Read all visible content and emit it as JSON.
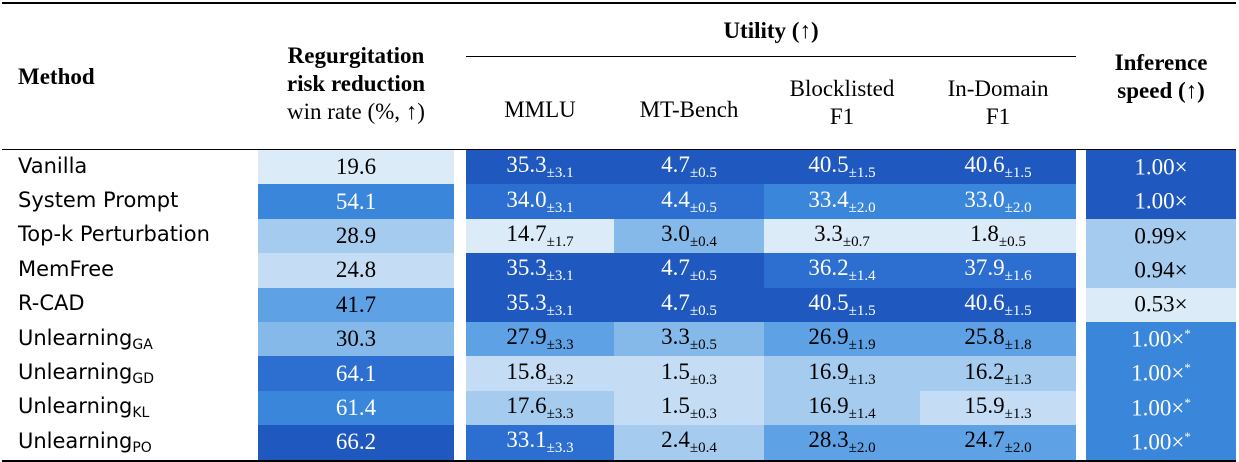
{
  "header": {
    "method": "Method",
    "regurg_line1": "Regurgitation",
    "regurg_line2": "risk reduction",
    "regurg_line3": "win rate (%, ↑)",
    "utility": "Utility (↑)",
    "mmlu": "MMLU",
    "mtbench": "MT-Bench",
    "blocklisted_line1": "Blocklisted",
    "blocklisted_line2": "F1",
    "indomain_line1": "In-Domain",
    "indomain_line2": "F1",
    "inference_line1": "Inference",
    "inference_line2": "speed (↑)"
  },
  "colors": {
    "c1": "#dcebf8",
    "c2": "#c4ddf4",
    "c3": "#a5cbef",
    "c4": "#84b9ea",
    "c5": "#5ea1e4",
    "c6": "#3a86db",
    "c7": "#2c6fd0",
    "c8": "#1f59bf"
  },
  "rows": [
    {
      "method": "Vanilla",
      "sub": "",
      "regurg": "19.6",
      "mmlu": "35.3",
      "mmlu_pm": "±3.1",
      "mt": "4.7",
      "mt_pm": "±0.5",
      "blk": "40.5",
      "blk_pm": "±1.5",
      "ind": "40.6",
      "ind_pm": "±1.5",
      "speed": "1.00×",
      "speed_star": ""
    },
    {
      "method": "System Prompt",
      "sub": "",
      "regurg": "54.1",
      "mmlu": "34.0",
      "mmlu_pm": "±3.1",
      "mt": "4.4",
      "mt_pm": "±0.5",
      "blk": "33.4",
      "blk_pm": "±2.0",
      "ind": "33.0",
      "ind_pm": "±2.0",
      "speed": "1.00×",
      "speed_star": ""
    },
    {
      "method": "Top-k Perturbation",
      "sub": "",
      "regurg": "28.9",
      "mmlu": "14.7",
      "mmlu_pm": "±1.7",
      "mt": "3.0",
      "mt_pm": "±0.4",
      "blk": "3.3",
      "blk_pm": "±0.7",
      "ind": "1.8",
      "ind_pm": "±0.5",
      "speed": "0.99×",
      "speed_star": ""
    },
    {
      "method": "MemFree",
      "sub": "",
      "regurg": "24.8",
      "mmlu": "35.3",
      "mmlu_pm": "±3.1",
      "mt": "4.7",
      "mt_pm": "±0.5",
      "blk": "36.2",
      "blk_pm": "±1.4",
      "ind": "37.9",
      "ind_pm": "±1.6",
      "speed": "0.94×",
      "speed_star": ""
    },
    {
      "method": "R-CAD",
      "sub": "",
      "regurg": "41.7",
      "mmlu": "35.3",
      "mmlu_pm": "±3.1",
      "mt": "4.7",
      "mt_pm": "±0.5",
      "blk": "40.5",
      "blk_pm": "±1.5",
      "ind": "40.6",
      "ind_pm": "±1.5",
      "speed": "0.53×",
      "speed_star": ""
    },
    {
      "method": "Unlearning",
      "sub": "GA",
      "regurg": "30.3",
      "mmlu": "27.9",
      "mmlu_pm": "±3.3",
      "mt": "3.3",
      "mt_pm": "±0.5",
      "blk": "26.9",
      "blk_pm": "±1.9",
      "ind": "25.8",
      "ind_pm": "±1.8",
      "speed": "1.00×",
      "speed_star": "*"
    },
    {
      "method": "Unlearning",
      "sub": "GD",
      "regurg": "64.1",
      "mmlu": "15.8",
      "mmlu_pm": "±3.2",
      "mt": "1.5",
      "mt_pm": "±0.3",
      "blk": "16.9",
      "blk_pm": "±1.3",
      "ind": "16.2",
      "ind_pm": "±1.3",
      "speed": "1.00×",
      "speed_star": "*"
    },
    {
      "method": "Unlearning",
      "sub": "KL",
      "regurg": "61.4",
      "mmlu": "17.6",
      "mmlu_pm": "±3.3",
      "mt": "1.5",
      "mt_pm": "±0.3",
      "blk": "16.9",
      "blk_pm": "±1.4",
      "ind": "15.9",
      "ind_pm": "±1.3",
      "speed": "1.00×",
      "speed_star": "*"
    },
    {
      "method": "Unlearning",
      "sub": "PO",
      "regurg": "66.2",
      "mmlu": "33.1",
      "mmlu_pm": "±3.3",
      "mt": "2.4",
      "mt_pm": "±0.4",
      "blk": "28.3",
      "blk_pm": "±2.0",
      "ind": "24.7",
      "ind_pm": "±2.0",
      "speed": "1.00×",
      "speed_star": "*"
    }
  ],
  "shading": [
    [
      "c1",
      "c8",
      "c8",
      "c8",
      "c8",
      "c8"
    ],
    [
      "c6",
      "c7",
      "c7",
      "c6",
      "c6",
      "c8"
    ],
    [
      "c3",
      "c1",
      "c4",
      "c1",
      "c1",
      "c3"
    ],
    [
      "c2",
      "c8",
      "c8",
      "c7",
      "c7",
      "c3"
    ],
    [
      "c5",
      "c8",
      "c8",
      "c8",
      "c8",
      "c1"
    ],
    [
      "c4",
      "c5",
      "c4",
      "c5",
      "c5",
      "c6"
    ],
    [
      "c7",
      "c2",
      "c2",
      "c3",
      "c3",
      "c6"
    ],
    [
      "c6",
      "c3",
      "c2",
      "c3",
      "c2",
      "c6"
    ],
    [
      "c8",
      "c7",
      "c3",
      "c5",
      "c5",
      "c6"
    ]
  ]
}
